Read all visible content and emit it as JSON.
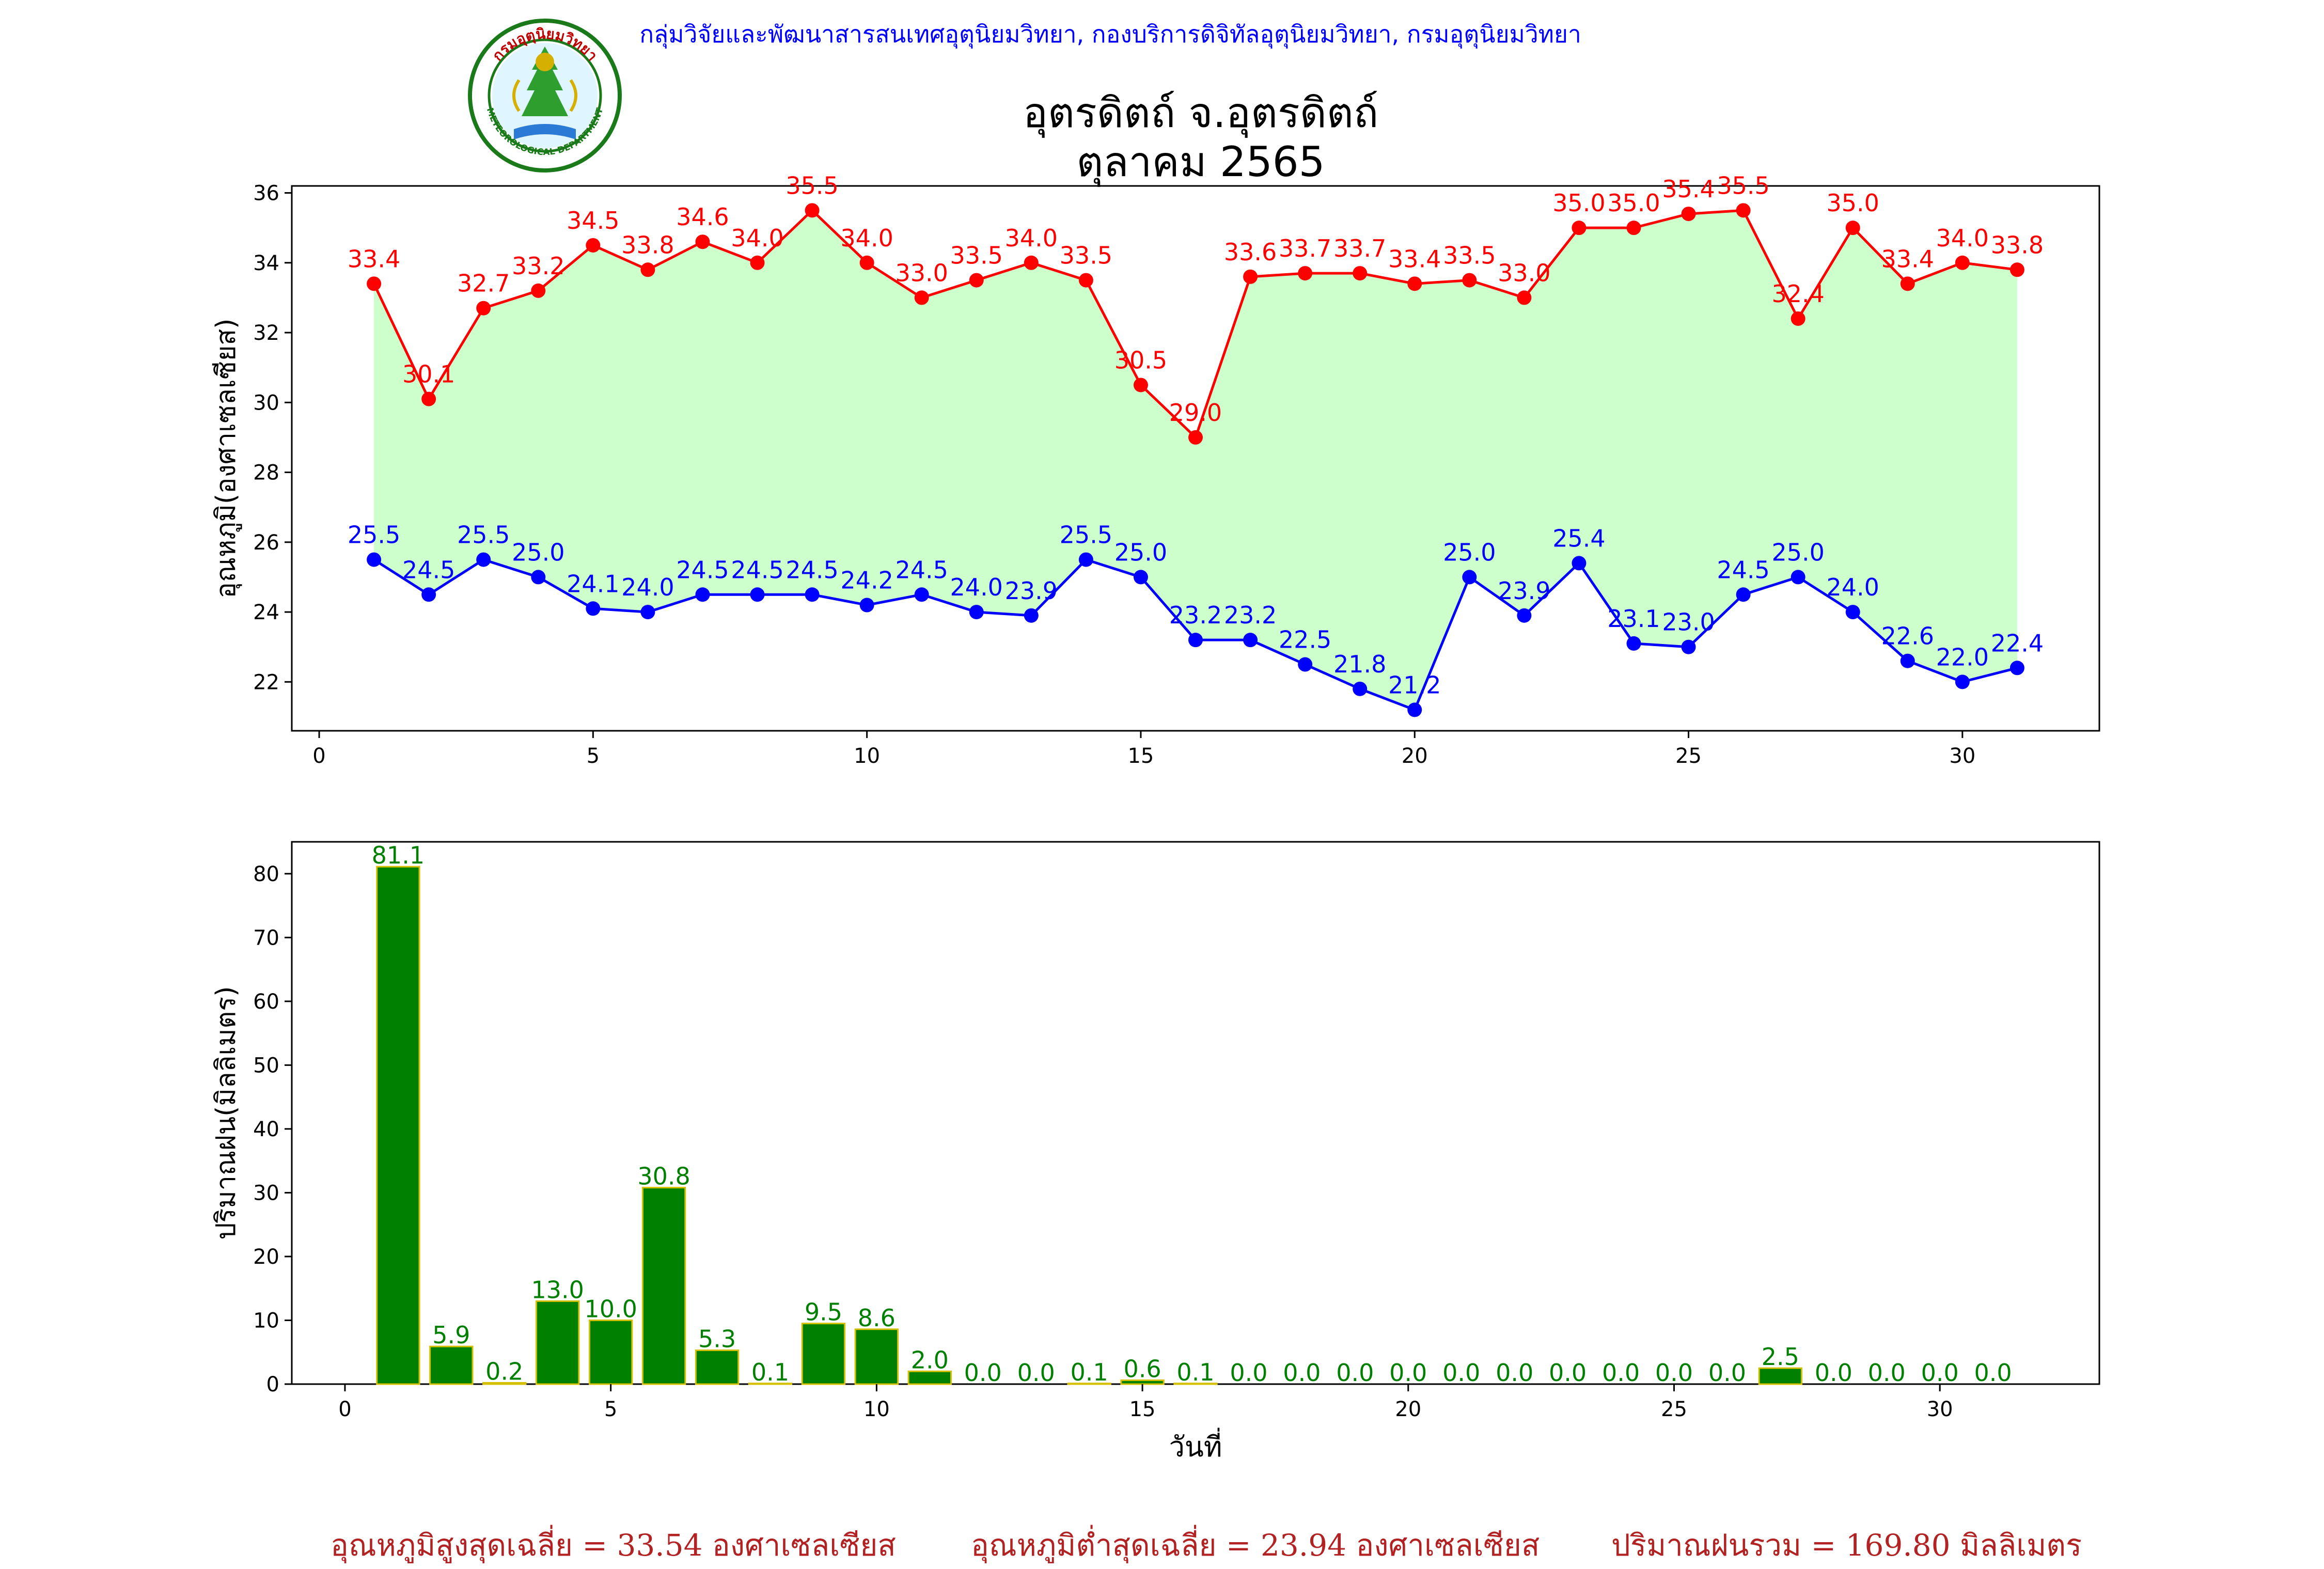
{
  "header": {
    "credit": "กลุ่มวิจัยและพัฒนาสารสนเทศอุตุนิยมวิทยา, กองบริการดิจิทัลอุตุนิยมวิทยา, กรมอุตุนิยมวิทยา",
    "title_line1": "อุตรดิตถ์ จ.อุตรดิตถ์",
    "title_line2": "ตุลาคม 2565",
    "logo_text_top": "กรมอุตุนิยมวิทยา",
    "logo_text_bottom": "METEOROLOGICAL DEPARTMENT"
  },
  "chart_data": [
    {
      "type": "line",
      "ylabel": "อุณหภูมิ(องศาเซลเซียส)",
      "xlabel": "",
      "xlim": [
        -0.5,
        32.5
      ],
      "ylim": [
        20.6,
        36.2
      ],
      "xticks": [
        0,
        5,
        10,
        15,
        20,
        25,
        30
      ],
      "yticks": [
        22,
        24,
        26,
        28,
        30,
        32,
        34,
        36
      ],
      "fill_between_color": "#ccffcc",
      "x": [
        1,
        2,
        3,
        4,
        5,
        6,
        7,
        8,
        9,
        10,
        11,
        12,
        13,
        14,
        15,
        16,
        17,
        18,
        19,
        20,
        21,
        22,
        23,
        24,
        25,
        26,
        27,
        28,
        29,
        30,
        31
      ],
      "series": [
        {
          "name": "max",
          "color": "#ff0000",
          "values": [
            33.4,
            30.1,
            32.7,
            33.2,
            34.5,
            33.8,
            34.6,
            34.0,
            35.5,
            34.0,
            33.0,
            33.5,
            34.0,
            33.5,
            30.5,
            29.0,
            33.6,
            33.7,
            33.7,
            33.4,
            33.5,
            33.0,
            35.0,
            35.0,
            35.4,
            35.5,
            32.4,
            35.0,
            33.4,
            34.0,
            33.8
          ]
        },
        {
          "name": "min",
          "color": "#0000ff",
          "values": [
            25.5,
            24.5,
            25.5,
            25.0,
            24.1,
            24.0,
            24.5,
            24.5,
            24.5,
            24.2,
            24.5,
            24.0,
            23.9,
            25.5,
            25.0,
            23.2,
            23.2,
            22.5,
            21.8,
            21.2,
            25.0,
            23.9,
            25.4,
            23.1,
            23.0,
            24.5,
            25.0,
            24.0,
            22.6,
            22.0,
            22.4
          ]
        }
      ]
    },
    {
      "type": "bar",
      "ylabel": "ปริมาณฝน(มิลลิเมตร)",
      "xlabel": "วันที่",
      "xlim": [
        -1,
        33
      ],
      "ylim": [
        0,
        85
      ],
      "xticks": [
        0,
        5,
        10,
        15,
        20,
        25,
        30
      ],
      "yticks": [
        0,
        10,
        20,
        30,
        40,
        50,
        60,
        70,
        80
      ],
      "bar_color": "#008000",
      "edge_color": "#d4c000",
      "label_color": "#008000",
      "x": [
        1,
        2,
        3,
        4,
        5,
        6,
        7,
        8,
        9,
        10,
        11,
        12,
        13,
        14,
        15,
        16,
        17,
        18,
        19,
        20,
        21,
        22,
        23,
        24,
        25,
        26,
        27,
        28,
        29,
        30,
        31
      ],
      "values": [
        81.1,
        5.9,
        0.2,
        13.0,
        10.0,
        30.8,
        5.3,
        0.1,
        9.5,
        8.6,
        2.0,
        0.0,
        0.0,
        0.1,
        0.6,
        0.1,
        0.0,
        0.0,
        0.0,
        0.0,
        0.0,
        0.0,
        0.0,
        0.0,
        0.0,
        0.0,
        2.5,
        0.0,
        0.0,
        0.0,
        0.0
      ]
    }
  ],
  "summary": {
    "avg_max": "อุณหภูมิสูงสุดเฉลี่ย = 33.54 องศาเซลเซียส",
    "avg_min": "อุณหภูมิต่ำสุดเฉลี่ย = 23.94 องศาเซลเซียส",
    "total_rain": "ปริมาณฝนรวม = 169.80 มิลลิเมตร",
    "color": "#b22222"
  }
}
